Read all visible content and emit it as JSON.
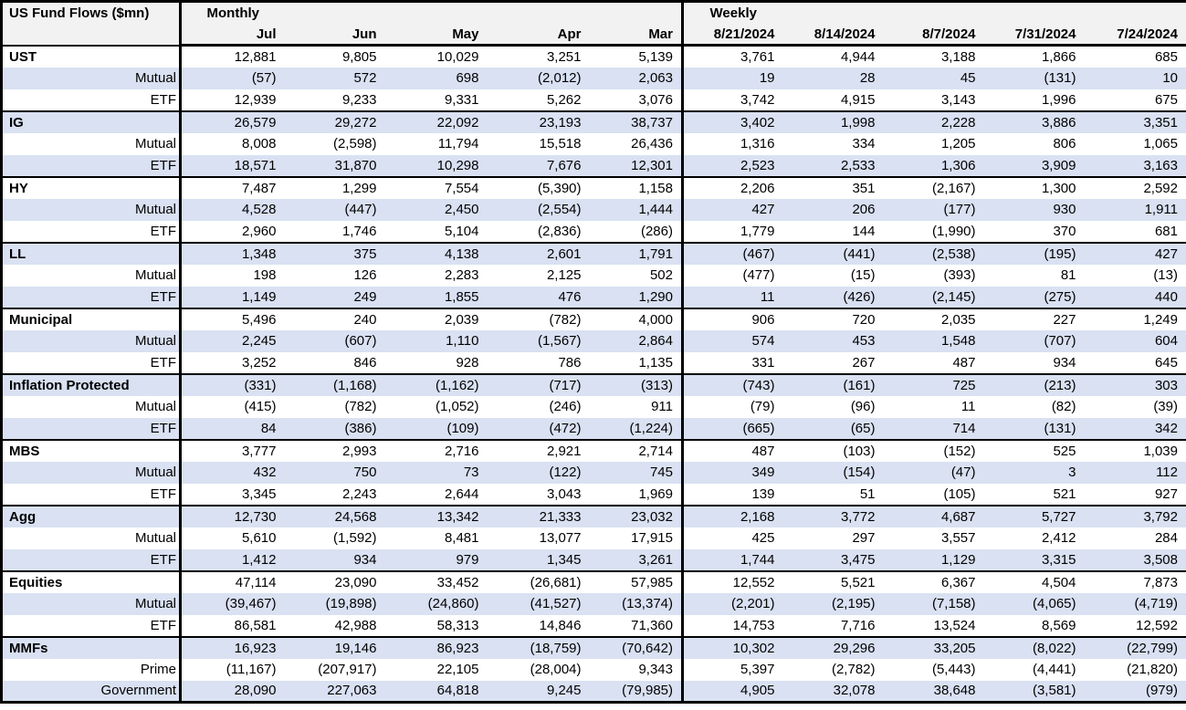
{
  "chart_data": {
    "type": "table",
    "title": "US Fund Flows ($mn)",
    "sections": [
      {
        "label": "Monthly",
        "columns": [
          "Jul",
          "Jun",
          "May",
          "Apr",
          "Mar"
        ]
      },
      {
        "label": "Weekly",
        "columns": [
          "8/21/2024",
          "8/14/2024",
          "8/7/2024",
          "7/31/2024",
          "7/24/2024"
        ]
      }
    ],
    "groups": [
      {
        "name": "UST",
        "rows": [
          {
            "label": "UST",
            "monthly": [
              "12,881",
              "9,805",
              "10,029",
              "3,251",
              "5,139"
            ],
            "weekly": [
              "3,761",
              "4,944",
              "3,188",
              "1,866",
              "685"
            ]
          },
          {
            "label": "Mutual",
            "monthly": [
              "(57)",
              "572",
              "698",
              "(2,012)",
              "2,063"
            ],
            "weekly": [
              "19",
              "28",
              "45",
              "(131)",
              "10"
            ]
          },
          {
            "label": "ETF",
            "monthly": [
              "12,939",
              "9,233",
              "9,331",
              "5,262",
              "3,076"
            ],
            "weekly": [
              "3,742",
              "4,915",
              "3,143",
              "1,996",
              "675"
            ]
          }
        ]
      },
      {
        "name": "IG",
        "rows": [
          {
            "label": "IG",
            "monthly": [
              "26,579",
              "29,272",
              "22,092",
              "23,193",
              "38,737"
            ],
            "weekly": [
              "3,402",
              "1,998",
              "2,228",
              "3,886",
              "3,351"
            ]
          },
          {
            "label": "Mutual",
            "monthly": [
              "8,008",
              "(2,598)",
              "11,794",
              "15,518",
              "26,436"
            ],
            "weekly": [
              "1,316",
              "334",
              "1,205",
              "806",
              "1,065"
            ]
          },
          {
            "label": "ETF",
            "monthly": [
              "18,571",
              "31,870",
              "10,298",
              "7,676",
              "12,301"
            ],
            "weekly": [
              "2,523",
              "2,533",
              "1,306",
              "3,909",
              "3,163"
            ]
          }
        ]
      },
      {
        "name": "HY",
        "rows": [
          {
            "label": "HY",
            "monthly": [
              "7,487",
              "1,299",
              "7,554",
              "(5,390)",
              "1,158"
            ],
            "weekly": [
              "2,206",
              "351",
              "(2,167)",
              "1,300",
              "2,592"
            ]
          },
          {
            "label": "Mutual",
            "monthly": [
              "4,528",
              "(447)",
              "2,450",
              "(2,554)",
              "1,444"
            ],
            "weekly": [
              "427",
              "206",
              "(177)",
              "930",
              "1,911"
            ]
          },
          {
            "label": "ETF",
            "monthly": [
              "2,960",
              "1,746",
              "5,104",
              "(2,836)",
              "(286)"
            ],
            "weekly": [
              "1,779",
              "144",
              "(1,990)",
              "370",
              "681"
            ]
          }
        ]
      },
      {
        "name": "LL",
        "rows": [
          {
            "label": "LL",
            "monthly": [
              "1,348",
              "375",
              "4,138",
              "2,601",
              "1,791"
            ],
            "weekly": [
              "(467)",
              "(441)",
              "(2,538)",
              "(195)",
              "427"
            ]
          },
          {
            "label": "Mutual",
            "monthly": [
              "198",
              "126",
              "2,283",
              "2,125",
              "502"
            ],
            "weekly": [
              "(477)",
              "(15)",
              "(393)",
              "81",
              "(13)"
            ]
          },
          {
            "label": "ETF",
            "monthly": [
              "1,149",
              "249",
              "1,855",
              "476",
              "1,290"
            ],
            "weekly": [
              "11",
              "(426)",
              "(2,145)",
              "(275)",
              "440"
            ]
          }
        ]
      },
      {
        "name": "Municipal",
        "rows": [
          {
            "label": "Municipal",
            "monthly": [
              "5,496",
              "240",
              "2,039",
              "(782)",
              "4,000"
            ],
            "weekly": [
              "906",
              "720",
              "2,035",
              "227",
              "1,249"
            ]
          },
          {
            "label": "Mutual",
            "monthly": [
              "2,245",
              "(607)",
              "1,110",
              "(1,567)",
              "2,864"
            ],
            "weekly": [
              "574",
              "453",
              "1,548",
              "(707)",
              "604"
            ]
          },
          {
            "label": "ETF",
            "monthly": [
              "3,252",
              "846",
              "928",
              "786",
              "1,135"
            ],
            "weekly": [
              "331",
              "267",
              "487",
              "934",
              "645"
            ]
          }
        ]
      },
      {
        "name": "Inflation Protected",
        "rows": [
          {
            "label": "Inflation Protected",
            "monthly": [
              "(331)",
              "(1,168)",
              "(1,162)",
              "(717)",
              "(313)"
            ],
            "weekly": [
              "(743)",
              "(161)",
              "725",
              "(213)",
              "303"
            ]
          },
          {
            "label": "Mutual",
            "monthly": [
              "(415)",
              "(782)",
              "(1,052)",
              "(246)",
              "911"
            ],
            "weekly": [
              "(79)",
              "(96)",
              "11",
              "(82)",
              "(39)"
            ]
          },
          {
            "label": "ETF",
            "monthly": [
              "84",
              "(386)",
              "(109)",
              "(472)",
              "(1,224)"
            ],
            "weekly": [
              "(665)",
              "(65)",
              "714",
              "(131)",
              "342"
            ]
          }
        ]
      },
      {
        "name": "MBS",
        "rows": [
          {
            "label": "MBS",
            "monthly": [
              "3,777",
              "2,993",
              "2,716",
              "2,921",
              "2,714"
            ],
            "weekly": [
              "487",
              "(103)",
              "(152)",
              "525",
              "1,039"
            ]
          },
          {
            "label": "Mutual",
            "monthly": [
              "432",
              "750",
              "73",
              "(122)",
              "745"
            ],
            "weekly": [
              "349",
              "(154)",
              "(47)",
              "3",
              "112"
            ]
          },
          {
            "label": "ETF",
            "monthly": [
              "3,345",
              "2,243",
              "2,644",
              "3,043",
              "1,969"
            ],
            "weekly": [
              "139",
              "51",
              "(105)",
              "521",
              "927"
            ]
          }
        ]
      },
      {
        "name": "Agg",
        "rows": [
          {
            "label": "Agg",
            "monthly": [
              "12,730",
              "24,568",
              "13,342",
              "21,333",
              "23,032"
            ],
            "weekly": [
              "2,168",
              "3,772",
              "4,687",
              "5,727",
              "3,792"
            ]
          },
          {
            "label": "Mutual",
            "monthly": [
              "5,610",
              "(1,592)",
              "8,481",
              "13,077",
              "17,915"
            ],
            "weekly": [
              "425",
              "297",
              "3,557",
              "2,412",
              "284"
            ]
          },
          {
            "label": "ETF",
            "monthly": [
              "1,412",
              "934",
              "979",
              "1,345",
              "3,261"
            ],
            "weekly": [
              "1,744",
              "3,475",
              "1,129",
              "3,315",
              "3,508"
            ]
          }
        ]
      },
      {
        "name": "Equities",
        "rows": [
          {
            "label": "Equities",
            "monthly": [
              "47,114",
              "23,090",
              "33,452",
              "(26,681)",
              "57,985"
            ],
            "weekly": [
              "12,552",
              "5,521",
              "6,367",
              "4,504",
              "7,873"
            ]
          },
          {
            "label": "Mutual",
            "monthly": [
              "(39,467)",
              "(19,898)",
              "(24,860)",
              "(41,527)",
              "(13,374)"
            ],
            "weekly": [
              "(2,201)",
              "(2,195)",
              "(7,158)",
              "(4,065)",
              "(4,719)"
            ]
          },
          {
            "label": "ETF",
            "monthly": [
              "86,581",
              "42,988",
              "58,313",
              "14,846",
              "71,360"
            ],
            "weekly": [
              "14,753",
              "7,716",
              "13,524",
              "8,569",
              "12,592"
            ]
          }
        ]
      },
      {
        "name": "MMFs",
        "rows": [
          {
            "label": "MMFs",
            "monthly": [
              "16,923",
              "19,146",
              "86,923",
              "(18,759)",
              "(70,642)"
            ],
            "weekly": [
              "10,302",
              "29,296",
              "33,205",
              "(8,022)",
              "(22,799)"
            ]
          },
          {
            "label": "Prime",
            "monthly": [
              "(11,167)",
              "(207,917)",
              "22,105",
              "(28,004)",
              "9,343"
            ],
            "weekly": [
              "5,397",
              "(2,782)",
              "(5,443)",
              "(4,441)",
              "(21,820)"
            ]
          },
          {
            "label": "Government",
            "monthly": [
              "28,090",
              "227,063",
              "64,818",
              "9,245",
              "(79,985)"
            ],
            "weekly": [
              "4,905",
              "32,078",
              "38,648",
              "(3,581)",
              "(979)"
            ]
          }
        ]
      }
    ]
  },
  "colors": {
    "shaded_row": "#d9e1f2",
    "header_bg": "#f2f2f2",
    "border": "#000000",
    "text": "#000000"
  }
}
